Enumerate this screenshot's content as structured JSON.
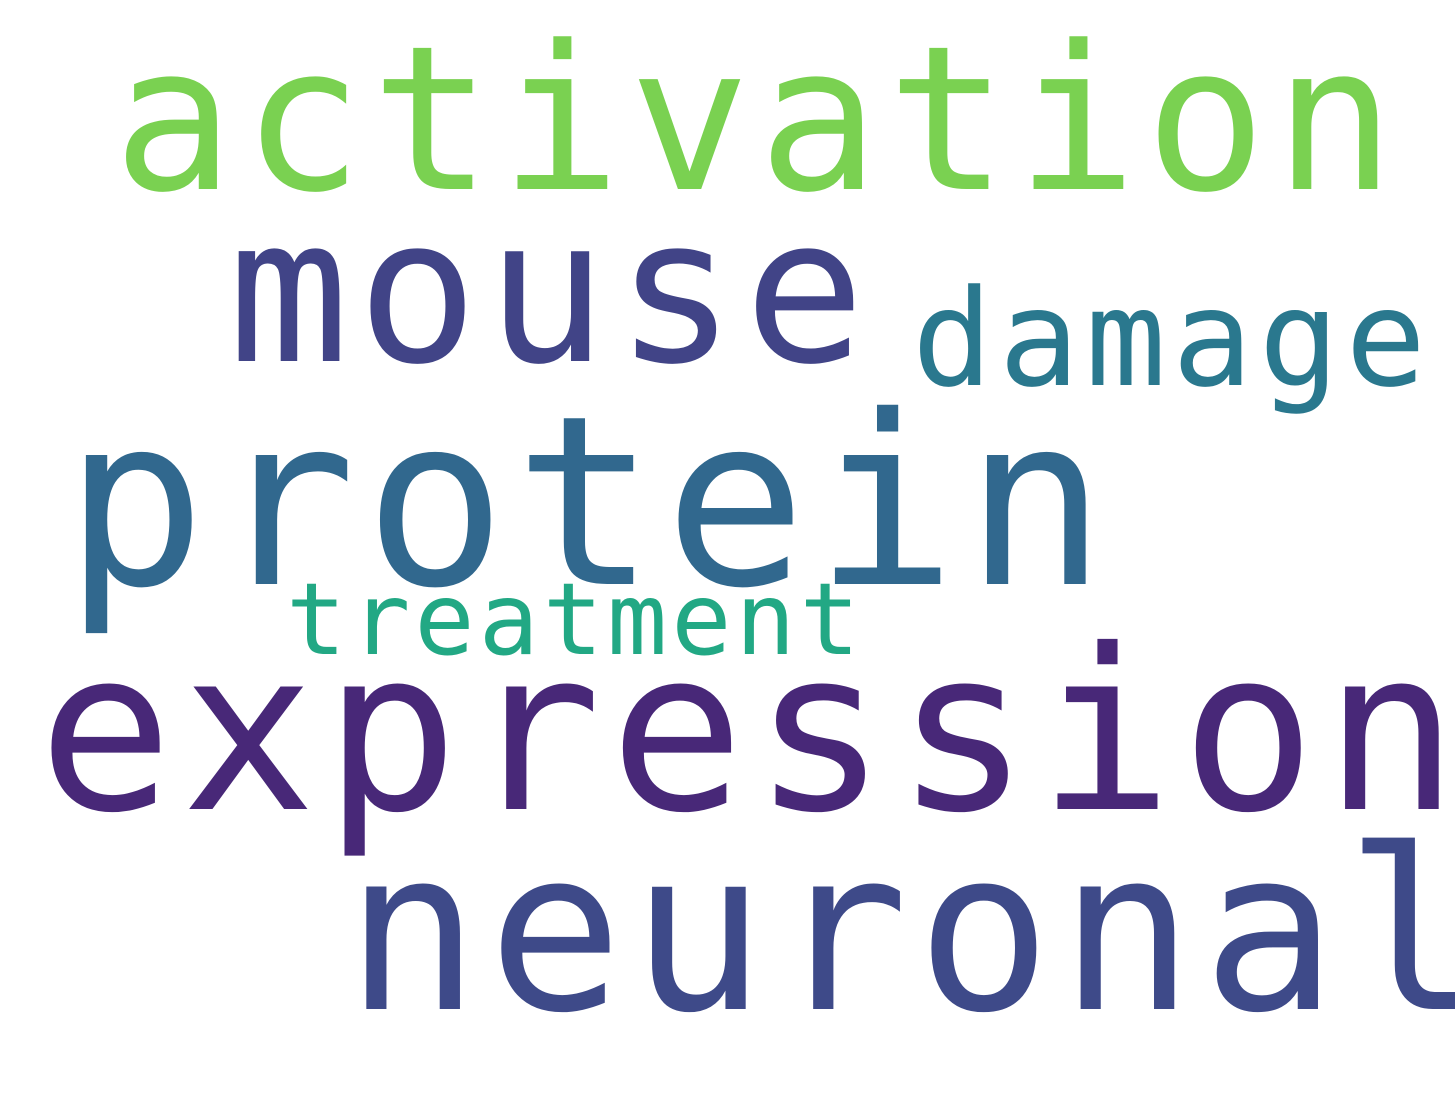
{
  "word_cloud": {
    "background": "#ffffff",
    "words": [
      {
        "text": "activation",
        "color": "#7ad151"
      },
      {
        "text": "mouse",
        "color": "#414487"
      },
      {
        "text": "damage",
        "color": "#2a788e"
      },
      {
        "text": "protein",
        "color": "#31688e"
      },
      {
        "text": "treatment",
        "color": "#22a884"
      },
      {
        "text": "expression",
        "color": "#482878"
      },
      {
        "text": "neuronal",
        "color": "#3e4a89"
      }
    ]
  }
}
